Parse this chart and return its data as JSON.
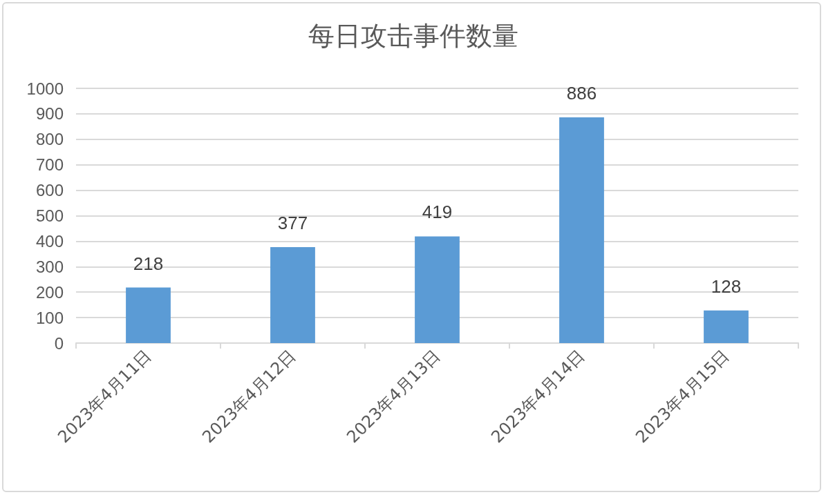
{
  "chart_data": {
    "type": "bar",
    "title": "每日攻击事件数量",
    "categories": [
      "2023年4月11日",
      "2023年4月12日",
      "2023年4月13日",
      "2023年4月14日",
      "2023年4月15日"
    ],
    "values": [
      218,
      377,
      419,
      886,
      128
    ],
    "color": "#5b9bd5",
    "ylim": [
      0,
      1000
    ],
    "yticks": [
      0,
      100,
      200,
      300,
      400,
      500,
      600,
      700,
      800,
      900,
      1000
    ],
    "grid": "y",
    "data_labels": true
  }
}
